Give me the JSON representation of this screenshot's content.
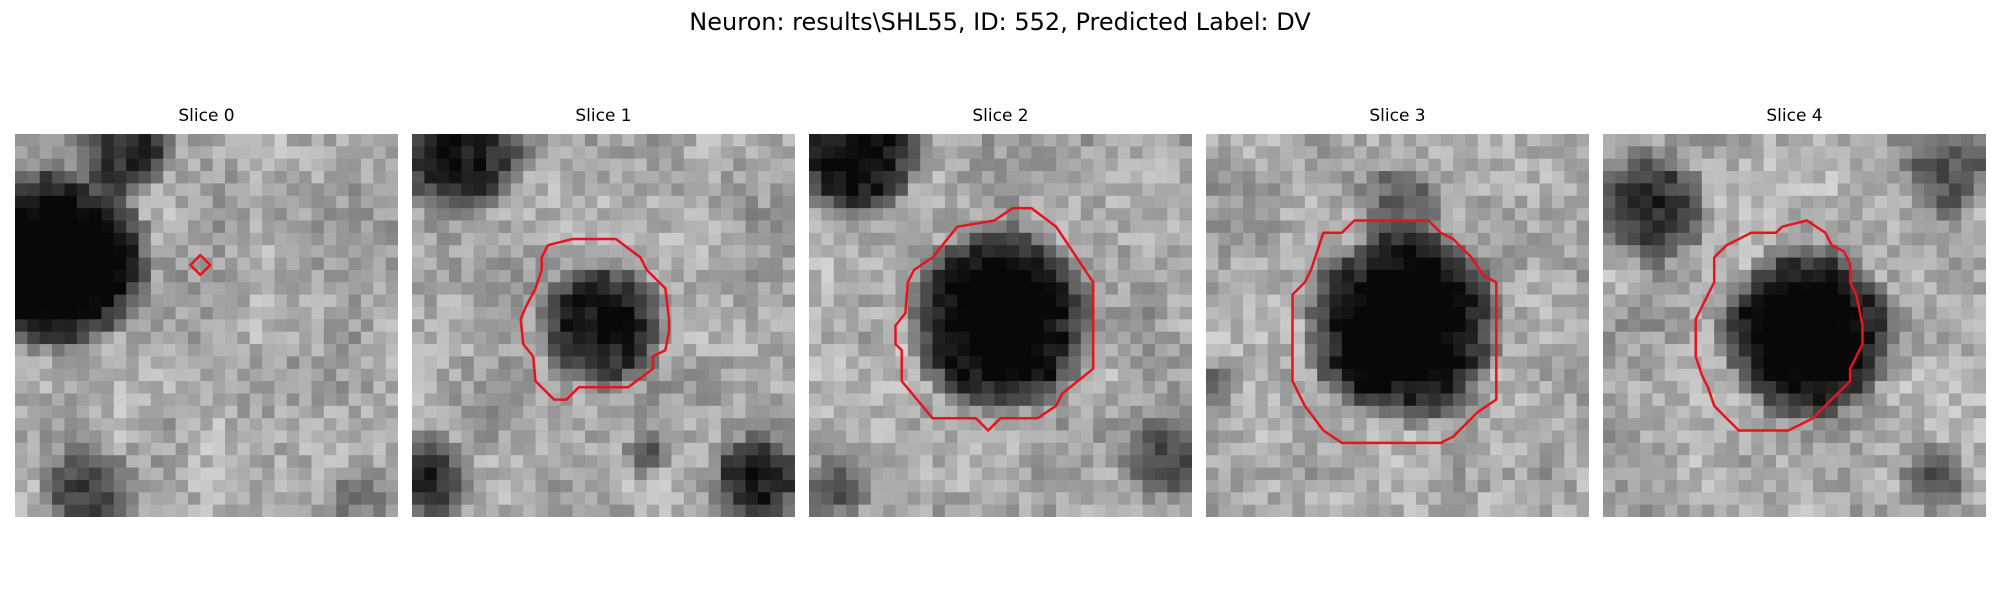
{
  "figure": {
    "title": "Neuron: results\\SHL55, ID: 552, Predicted Label: DV"
  },
  "contour_color": "#e8141c",
  "panels": [
    {
      "title": "Slice 0"
    },
    {
      "title": "Slice 1"
    },
    {
      "title": "Slice 2"
    },
    {
      "title": "Slice 3"
    },
    {
      "title": "Slice 4"
    }
  ]
}
